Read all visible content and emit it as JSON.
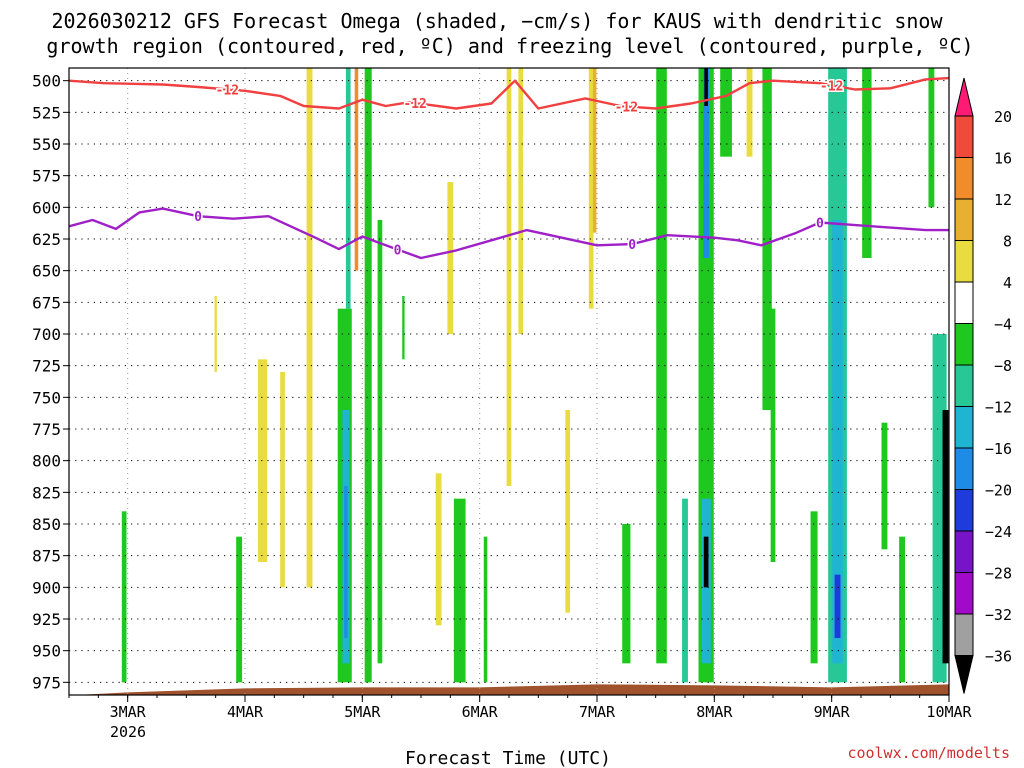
{
  "chart_data": {
    "type": "heatmap",
    "title": "2026030212 GFS Forecast Omega (shaded, −cm/s) for KAUS with dendritic snow",
    "subtitle": "growth region (contoured, red, ºC) and freezing level (contoured, purple, ºC)",
    "xlabel": "Forecast Time (UTC)",
    "ylabel": "",
    "credit": "coolwx.com/modelts",
    "x_ticks": [
      "3MAR",
      "4MAR",
      "5MAR",
      "6MAR",
      "7MAR",
      "8MAR",
      "9MAR",
      "10MAR"
    ],
    "x_sub": "2026",
    "y_ticks": [
      500,
      525,
      550,
      575,
      600,
      625,
      650,
      675,
      700,
      725,
      750,
      775,
      800,
      825,
      850,
      875,
      900,
      925,
      950,
      975
    ],
    "ylim": [
      490,
      985
    ],
    "xlim_days": [
      2.5,
      10.0
    ],
    "grid": true,
    "colorbar": {
      "labels": [
        "20",
        "16",
        "12",
        "8",
        "4",
        "−4",
        "−8",
        "−12",
        "−16",
        "−20",
        "−24",
        "−28",
        "−32",
        "−36"
      ],
      "colors": [
        "#ff1a75",
        "#f04a3a",
        "#f08c2a",
        "#e8b030",
        "#e8dc40",
        "#ffffff",
        "#1ec81e",
        "#28c896",
        "#1eb4d2",
        "#1e8ce6",
        "#1e3cdc",
        "#7814c8",
        "#a00ac8",
        "#a0a0a0",
        "#000000"
      ]
    },
    "contours": {
      "dgz_red": {
        "label": "-12",
        "color": "#f04040",
        "points": [
          [
            2.5,
            500
          ],
          [
            2.8,
            502
          ],
          [
            3.3,
            503
          ],
          [
            3.6,
            505
          ],
          [
            4.0,
            508
          ],
          [
            4.3,
            512
          ],
          [
            4.5,
            520
          ],
          [
            4.8,
            522
          ],
          [
            5.0,
            515
          ],
          [
            5.2,
            520
          ],
          [
            5.4,
            517
          ],
          [
            5.8,
            522
          ],
          [
            6.1,
            518
          ],
          [
            6.3,
            500
          ],
          [
            6.5,
            522
          ],
          [
            6.9,
            514
          ],
          [
            7.2,
            520
          ],
          [
            7.5,
            522
          ],
          [
            7.8,
            518
          ],
          [
            8.1,
            512
          ],
          [
            8.3,
            502
          ],
          [
            8.5,
            500
          ],
          [
            8.9,
            502
          ],
          [
            9.2,
            507
          ],
          [
            9.5,
            506
          ],
          [
            9.8,
            499
          ],
          [
            10.0,
            498
          ]
        ],
        "label_days": [
          3.85,
          5.45,
          7.25,
          9.0
        ]
      },
      "freezing_purple": {
        "label": "0",
        "color": "#a020c8",
        "points": [
          [
            2.5,
            615
          ],
          [
            2.7,
            610
          ],
          [
            2.9,
            617
          ],
          [
            3.1,
            604
          ],
          [
            3.3,
            601
          ],
          [
            3.6,
            607
          ],
          [
            3.9,
            609
          ],
          [
            4.2,
            607
          ],
          [
            4.6,
            624
          ],
          [
            4.8,
            633
          ],
          [
            5.0,
            623
          ],
          [
            5.2,
            630
          ],
          [
            5.5,
            640
          ],
          [
            5.8,
            634
          ],
          [
            6.1,
            626
          ],
          [
            6.4,
            618
          ],
          [
            6.7,
            624
          ],
          [
            7.0,
            630
          ],
          [
            7.3,
            629
          ],
          [
            7.6,
            622
          ],
          [
            8.0,
            624
          ],
          [
            8.2,
            626
          ],
          [
            8.4,
            630
          ],
          [
            8.7,
            620
          ],
          [
            8.9,
            612
          ],
          [
            9.2,
            614
          ],
          [
            9.5,
            616
          ],
          [
            9.8,
            618
          ],
          [
            10.0,
            618
          ]
        ],
        "label_days": [
          3.6,
          5.3,
          7.3,
          8.9
        ]
      }
    },
    "omega_cells": [
      {
        "day": 2.97,
        "w": 0.04,
        "p0": 840,
        "p1": 975,
        "omega": -6
      },
      {
        "day": 3.95,
        "w": 0.05,
        "p0": 860,
        "p1": 975,
        "omega": -6
      },
      {
        "day": 3.75,
        "w": 0.02,
        "p0": 670,
        "p1": 730,
        "omega": 5
      },
      {
        "day": 4.15,
        "w": 0.08,
        "p0": 720,
        "p1": 880,
        "omega": 5
      },
      {
        "day": 4.32,
        "w": 0.04,
        "p0": 730,
        "p1": 900,
        "omega": 5
      },
      {
        "day": 4.55,
        "w": 0.05,
        "p0": 490,
        "p1": 900,
        "omega": 5
      },
      {
        "day": 4.85,
        "w": 0.12,
        "p0": 680,
        "p1": 975,
        "omega": -8
      },
      {
        "day": 4.86,
        "w": 0.06,
        "p0": 760,
        "p1": 960,
        "omega": -14
      },
      {
        "day": 4.86,
        "w": 0.03,
        "p0": 820,
        "p1": 940,
        "omega": -20
      },
      {
        "day": 4.88,
        "w": 0.04,
        "p0": 490,
        "p1": 680,
        "omega": -10
      },
      {
        "day": 4.95,
        "w": 0.03,
        "p0": 490,
        "p1": 650,
        "omega": 13
      },
      {
        "day": 5.05,
        "w": 0.06,
        "p0": 490,
        "p1": 975,
        "omega": -6
      },
      {
        "day": 5.15,
        "w": 0.04,
        "p0": 610,
        "p1": 960,
        "omega": -6
      },
      {
        "day": 5.35,
        "w": 0.02,
        "p0": 670,
        "p1": 720,
        "omega": -6
      },
      {
        "day": 5.65,
        "w": 0.05,
        "p0": 810,
        "p1": 930,
        "omega": 5
      },
      {
        "day": 5.75,
        "w": 0.05,
        "p0": 580,
        "p1": 700,
        "omega": 5
      },
      {
        "day": 5.83,
        "w": 0.1,
        "p0": 830,
        "p1": 975,
        "omega": -6
      },
      {
        "day": 6.05,
        "w": 0.03,
        "p0": 860,
        "p1": 975,
        "omega": -6
      },
      {
        "day": 6.25,
        "w": 0.04,
        "p0": 490,
        "p1": 820,
        "omega": 5
      },
      {
        "day": 6.35,
        "w": 0.04,
        "p0": 490,
        "p1": 700,
        "omega": 5
      },
      {
        "day": 6.75,
        "w": 0.04,
        "p0": 760,
        "p1": 920,
        "omega": 5
      },
      {
        "day": 6.95,
        "w": 0.04,
        "p0": 490,
        "p1": 680,
        "omega": 5
      },
      {
        "day": 6.98,
        "w": 0.03,
        "p0": 490,
        "p1": 620,
        "omega": 10
      },
      {
        "day": 7.25,
        "w": 0.07,
        "p0": 850,
        "p1": 960,
        "omega": -6
      },
      {
        "day": 7.55,
        "w": 0.09,
        "p0": 490,
        "p1": 960,
        "omega": -6
      },
      {
        "day": 7.75,
        "w": 0.05,
        "p0": 830,
        "p1": 975,
        "omega": -10
      },
      {
        "day": 7.93,
        "w": 0.13,
        "p0": 490,
        "p1": 975,
        "omega": -8
      },
      {
        "day": 7.93,
        "w": 0.08,
        "p0": 830,
        "p1": 960,
        "omega": -16
      },
      {
        "day": 7.93,
        "w": 0.05,
        "p0": 490,
        "p1": 640,
        "omega": -20
      },
      {
        "day": 7.93,
        "w": 0.03,
        "p0": 490,
        "p1": 520,
        "omega": -40
      },
      {
        "day": 7.93,
        "w": 0.04,
        "p0": 860,
        "p1": 900,
        "omega": -40
      },
      {
        "day": 8.1,
        "w": 0.1,
        "p0": 490,
        "p1": 560,
        "omega": -6
      },
      {
        "day": 8.3,
        "w": 0.05,
        "p0": 490,
        "p1": 560,
        "omega": 5
      },
      {
        "day": 8.45,
        "w": 0.08,
        "p0": 490,
        "p1": 760,
        "omega": -6
      },
      {
        "day": 8.5,
        "w": 0.04,
        "p0": 680,
        "p1": 880,
        "omega": -6
      },
      {
        "day": 8.85,
        "w": 0.06,
        "p0": 840,
        "p1": 960,
        "omega": -8
      },
      {
        "day": 9.05,
        "w": 0.16,
        "p0": 490,
        "p1": 975,
        "omega": -10
      },
      {
        "day": 9.05,
        "w": 0.09,
        "p0": 610,
        "p1": 960,
        "omega": -14
      },
      {
        "day": 9.05,
        "w": 0.05,
        "p0": 890,
        "p1": 940,
        "omega": -22
      },
      {
        "day": 9.3,
        "w": 0.08,
        "p0": 490,
        "p1": 640,
        "omega": -6
      },
      {
        "day": 9.45,
        "w": 0.05,
        "p0": 770,
        "p1": 870,
        "omega": -6
      },
      {
        "day": 9.6,
        "w": 0.05,
        "p0": 860,
        "p1": 975,
        "omega": -6
      },
      {
        "day": 9.85,
        "w": 0.05,
        "p0": 490,
        "p1": 600,
        "omega": -6
      },
      {
        "day": 9.92,
        "w": 0.12,
        "p0": 700,
        "p1": 975,
        "omega": -10
      },
      {
        "day": 9.97,
        "w": 0.05,
        "p0": 760,
        "p1": 960,
        "omega": -40
      }
    ]
  }
}
